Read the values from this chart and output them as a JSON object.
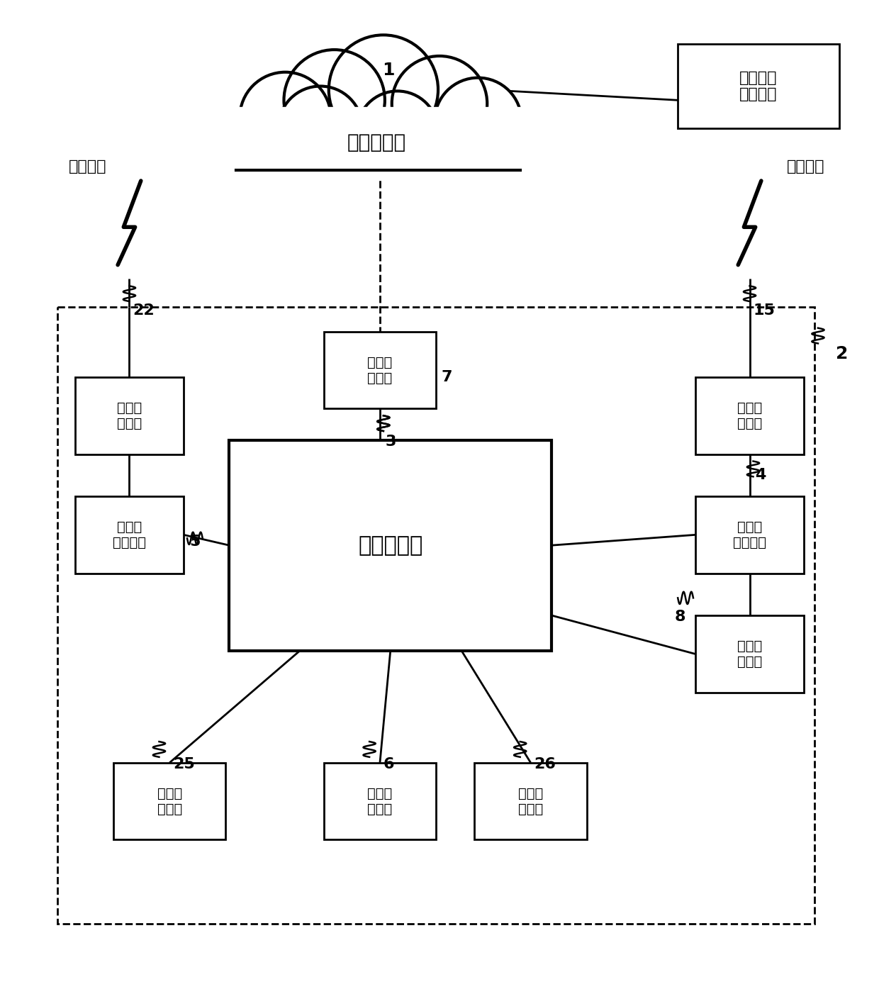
{
  "bg_color": "#ffffff",
  "cloud_label": "云端服务器",
  "bolt_label": "爆破母线",
  "top_right_label": "公安民爆\n管理系统",
  "cloud_comm_label": "云端通\n讯模块",
  "central_label": "中央控制器",
  "left_terminal_label": "第二接\n线端子",
  "left_energy_label": "外蓄能\n起爆模块",
  "right_terminal_label": "第一接\n线端子",
  "right_energy_label": "内蓄能\n起爆模块",
  "storage_label": "起爆参\n存储器",
  "bio_label": "生物采\n集模块",
  "power_label": "电源控\n制模块",
  "env_label": "环境采\n集模块"
}
